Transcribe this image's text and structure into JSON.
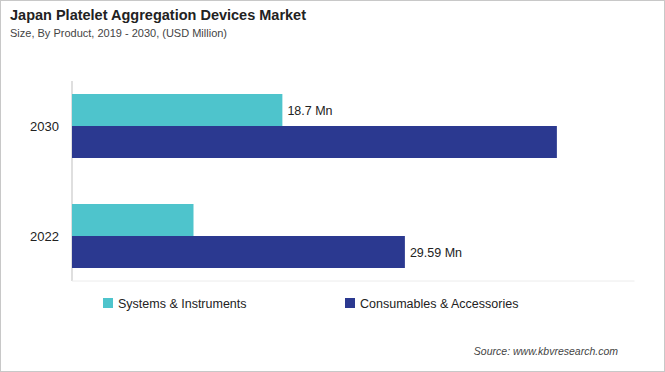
{
  "chart_data": {
    "type": "bar",
    "orientation": "horizontal",
    "title": "Japan Platelet Aggregation Devices Market",
    "subtitle": "Size, By Product, 2019 - 2030, (USD Million)",
    "source": "Source: www.kbvresearch.com",
    "categories": [
      "2030",
      "2022"
    ],
    "series": [
      {
        "name": "Systems & Instruments",
        "color": "#4ec4cc",
        "values": [
          18.7,
          10.8
        ],
        "value_labels": [
          "18.7 Mn",
          null
        ]
      },
      {
        "name": "Consumables & Accessories",
        "color": "#2b3990",
        "values": [
          43.1,
          29.59
        ],
        "value_labels": [
          null,
          "29.59 Mn"
        ]
      }
    ],
    "xlim": [
      0,
      50
    ],
    "xticks": [],
    "grid": false,
    "legend": "bottom",
    "data_labels": true,
    "tick_labels": "y"
  }
}
